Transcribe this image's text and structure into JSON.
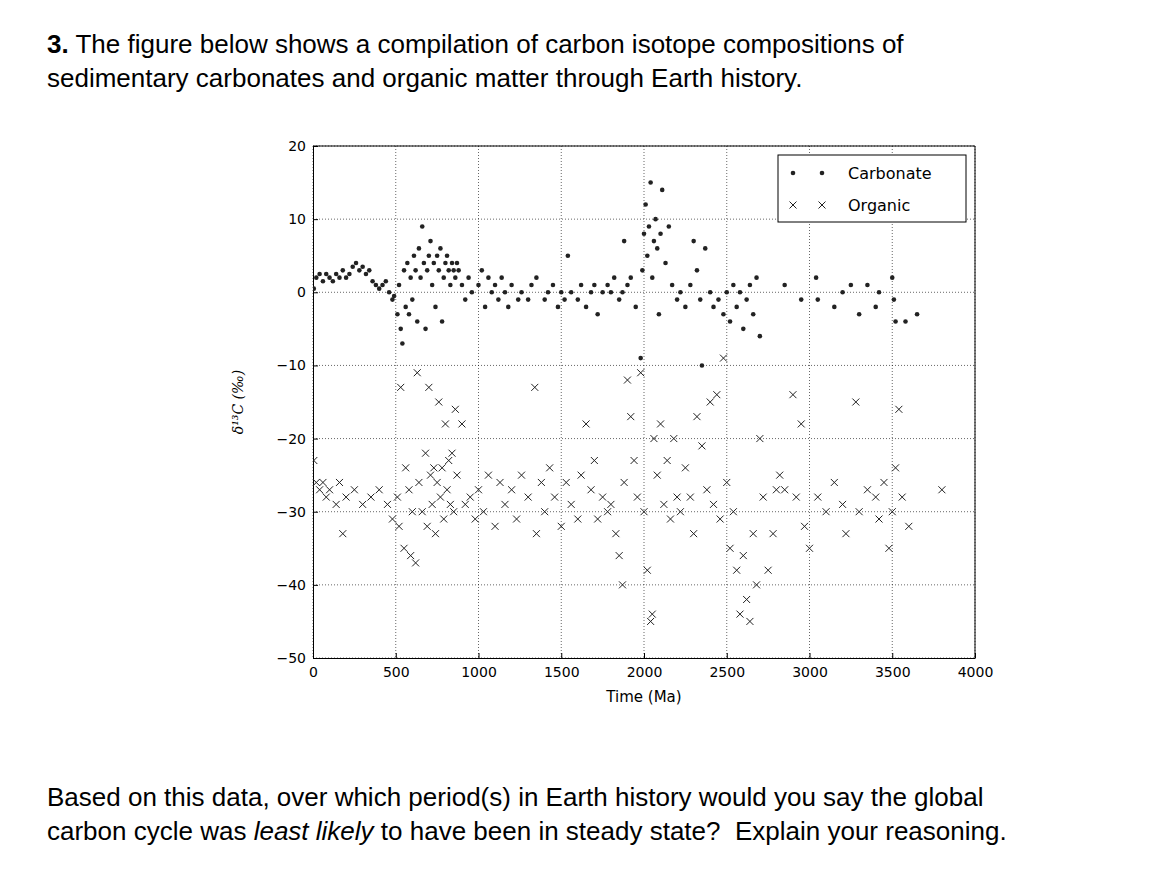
{
  "question": {
    "number": "3.",
    "intro_lines": [
      "The figure below shows a compilation of carbon isotope compositions of",
      "sedimentary carbonates and organic matter through Earth history."
    ],
    "prompt_lines": [
      [
        "Based on this data, over which period(s) in Earth history would you say the global"
      ],
      [
        "carbon cycle was ",
        "least likely",
        " to have been in steady state?  Explain your reasoning."
      ]
    ]
  },
  "chart_data": {
    "type": "scatter",
    "x_label": "Time (Ma)",
    "y_label": "δ¹³C (‰)",
    "xlim": [
      0,
      4000
    ],
    "ylim": [
      -50,
      20
    ],
    "xticks": [
      0,
      500,
      1000,
      1500,
      2000,
      2500,
      3000,
      3500,
      4000
    ],
    "yticks": [
      {
        "value": -50,
        "label": "−50"
      },
      {
        "value": -40,
        "label": "−40"
      },
      {
        "value": -30,
        "label": "−30"
      },
      {
        "value": -20,
        "label": "−20"
      },
      {
        "value": -10,
        "label": "−10"
      },
      0,
      10,
      20
    ],
    "grid": true,
    "legend": "upper right",
    "series": [
      {
        "name": "Carbonate",
        "color": "#222222",
        "marker": "dot",
        "x": [
          5,
          20,
          40,
          60,
          80,
          100,
          120,
          140,
          160,
          180,
          200,
          220,
          240,
          260,
          280,
          300,
          320,
          340,
          360,
          380,
          400,
          420,
          440,
          460,
          480,
          490,
          510,
          520,
          530,
          540,
          550,
          560,
          570,
          580,
          590,
          600,
          610,
          620,
          630,
          640,
          650,
          660,
          670,
          680,
          690,
          700,
          710,
          720,
          730,
          740,
          750,
          760,
          770,
          780,
          790,
          800,
          810,
          820,
          830,
          840,
          850,
          860,
          870,
          880,
          900,
          920,
          940,
          960,
          1000,
          1020,
          1040,
          1060,
          1080,
          1100,
          1120,
          1140,
          1160,
          1180,
          1200,
          1240,
          1260,
          1300,
          1320,
          1350,
          1400,
          1420,
          1450,
          1480,
          1500,
          1520,
          1540,
          1560,
          1600,
          1620,
          1650,
          1680,
          1700,
          1720,
          1750,
          1780,
          1800,
          1820,
          1850,
          1870,
          1880,
          1900,
          1920,
          1950,
          1980,
          1990,
          2000,
          2010,
          2020,
          2030,
          2040,
          2050,
          2060,
          2070,
          2080,
          2090,
          2100,
          2110,
          2130,
          2150,
          2170,
          2200,
          2220,
          2250,
          2280,
          2300,
          2320,
          2340,
          2350,
          2370,
          2400,
          2420,
          2450,
          2480,
          2500,
          2520,
          2540,
          2560,
          2580,
          2600,
          2620,
          2640,
          2660,
          2680,
          2700,
          2850,
          2950,
          3040,
          3050,
          3150,
          3200,
          3250,
          3300,
          3350,
          3400,
          3420,
          3500,
          3510,
          3520,
          3580,
          3650
        ],
        "values": [
          0.5,
          2,
          2.5,
          1.5,
          2.5,
          2,
          1.5,
          2.5,
          2,
          3,
          2,
          2.5,
          3.5,
          4,
          3,
          3.5,
          2.5,
          3,
          1.5,
          1,
          0.5,
          1,
          1.5,
          0,
          -1,
          -0.5,
          -3,
          1,
          -5,
          -7,
          3,
          -2,
          4,
          -3,
          2,
          -1,
          5,
          3,
          -4,
          6,
          2,
          9,
          4,
          -5,
          3,
          5,
          7,
          1,
          4,
          -2,
          5,
          3,
          6,
          -4,
          2,
          4,
          5,
          3,
          1,
          4,
          3,
          2,
          4,
          3,
          1,
          -1,
          2,
          0,
          1,
          3,
          -2,
          2,
          0,
          1,
          -1,
          2,
          0,
          -2,
          1,
          -1,
          0,
          -1,
          1,
          2,
          -1,
          0,
          1,
          -2,
          0,
          -1,
          5,
          0,
          -1,
          1,
          -2,
          0,
          1,
          -3,
          0,
          1,
          0,
          2,
          -1,
          0,
          7,
          1,
          2,
          -2,
          -9,
          3,
          8,
          12,
          5,
          9,
          15,
          2,
          7,
          10,
          6,
          -3,
          8,
          14,
          4,
          9,
          1,
          -1,
          0,
          -2,
          1,
          7,
          3,
          -1,
          -10,
          6,
          0,
          -2,
          -1,
          -3,
          0,
          -4,
          1,
          -2,
          0,
          -5,
          -1,
          1,
          -3,
          2,
          -6,
          1,
          -1,
          2,
          -1,
          -2,
          0,
          1,
          -3,
          1,
          -2,
          0,
          2,
          -1,
          -4,
          -4,
          -3
        ]
      },
      {
        "name": "Organic",
        "color": "#222222",
        "marker": "x",
        "x": [
          5,
          20,
          40,
          60,
          80,
          100,
          140,
          160,
          180,
          200,
          250,
          300,
          350,
          400,
          450,
          480,
          510,
          520,
          530,
          550,
          560,
          580,
          590,
          600,
          620,
          630,
          640,
          660,
          680,
          690,
          700,
          710,
          720,
          730,
          740,
          750,
          760,
          770,
          780,
          790,
          800,
          810,
          820,
          830,
          840,
          850,
          860,
          870,
          900,
          920,
          950,
          980,
          1000,
          1030,
          1060,
          1100,
          1130,
          1160,
          1200,
          1230,
          1260,
          1300,
          1340,
          1350,
          1380,
          1400,
          1430,
          1460,
          1500,
          1530,
          1560,
          1600,
          1620,
          1650,
          1680,
          1700,
          1720,
          1750,
          1780,
          1800,
          1830,
          1850,
          1870,
          1880,
          1900,
          1920,
          1940,
          1960,
          1980,
          2000,
          2020,
          2040,
          2050,
          2060,
          2080,
          2100,
          2120,
          2140,
          2160,
          2180,
          2200,
          2220,
          2250,
          2280,
          2300,
          2320,
          2350,
          2380,
          2400,
          2420,
          2440,
          2460,
          2480,
          2500,
          2520,
          2540,
          2560,
          2580,
          2600,
          2620,
          2640,
          2660,
          2680,
          2700,
          2720,
          2750,
          2780,
          2800,
          2820,
          2850,
          2900,
          2920,
          2950,
          2970,
          3000,
          3050,
          3100,
          3150,
          3200,
          3220,
          3280,
          3300,
          3350,
          3400,
          3420,
          3450,
          3480,
          3500,
          3520,
          3540,
          3560,
          3600,
          3800
        ],
        "values": [
          -23,
          -26,
          -27,
          -26,
          -28,
          -27,
          -29,
          -26,
          -33,
          -28,
          -27,
          -29,
          -28,
          -27,
          -29,
          -31,
          -28,
          -32,
          -13,
          -35,
          -24,
          -27,
          -36,
          -30,
          -37,
          -11,
          -26,
          -30,
          -22,
          -32,
          -13,
          -25,
          -29,
          -24,
          -33,
          -26,
          -15,
          -28,
          -24,
          -31,
          -18,
          -27,
          -23,
          -29,
          -22,
          -30,
          -16,
          -25,
          -18,
          -29,
          -28,
          -31,
          -27,
          -30,
          -25,
          -32,
          -26,
          -29,
          -27,
          -31,
          -25,
          -28,
          -13,
          -33,
          -26,
          -30,
          -24,
          -28,
          -32,
          -26,
          -29,
          -31,
          -25,
          -18,
          -27,
          -23,
          -31,
          -28,
          -30,
          -29,
          -33,
          -36,
          -40,
          -26,
          -12,
          -17,
          -23,
          -28,
          -11,
          -30,
          -38,
          -45,
          -44,
          -20,
          -25,
          -18,
          -29,
          -23,
          -31,
          -20,
          -28,
          -30,
          -24,
          -28,
          -33,
          -17,
          -21,
          -27,
          -15,
          -29,
          -14,
          -31,
          -9,
          -26,
          -35,
          -30,
          -38,
          -44,
          -36,
          -42,
          -45,
          -33,
          -40,
          -20,
          -28,
          -38,
          -33,
          -27,
          -25,
          -27,
          -14,
          -28,
          -18,
          -32,
          -35,
          -28,
          -30,
          -26,
          -29,
          -33,
          -15,
          -30,
          -27,
          -28,
          -31,
          -26,
          -35,
          -30,
          -24,
          -16,
          -28,
          -32,
          -27
        ]
      }
    ]
  }
}
